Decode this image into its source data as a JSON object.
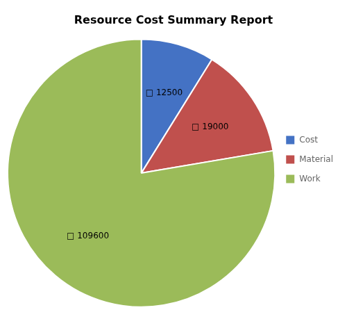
{
  "chart_data": {
    "type": "pie",
    "title": "Resource Cost Summary Report",
    "categories": [
      "Cost",
      "Material",
      "Work"
    ],
    "values": [
      12500,
      19000,
      109600
    ],
    "value_labels": [
      "□ 12500",
      "□ 19000",
      "□ 109600"
    ],
    "colors": [
      "#4472C4",
      "#C0504D",
      "#9BBB59"
    ],
    "data_labels": true,
    "legend": "right"
  }
}
